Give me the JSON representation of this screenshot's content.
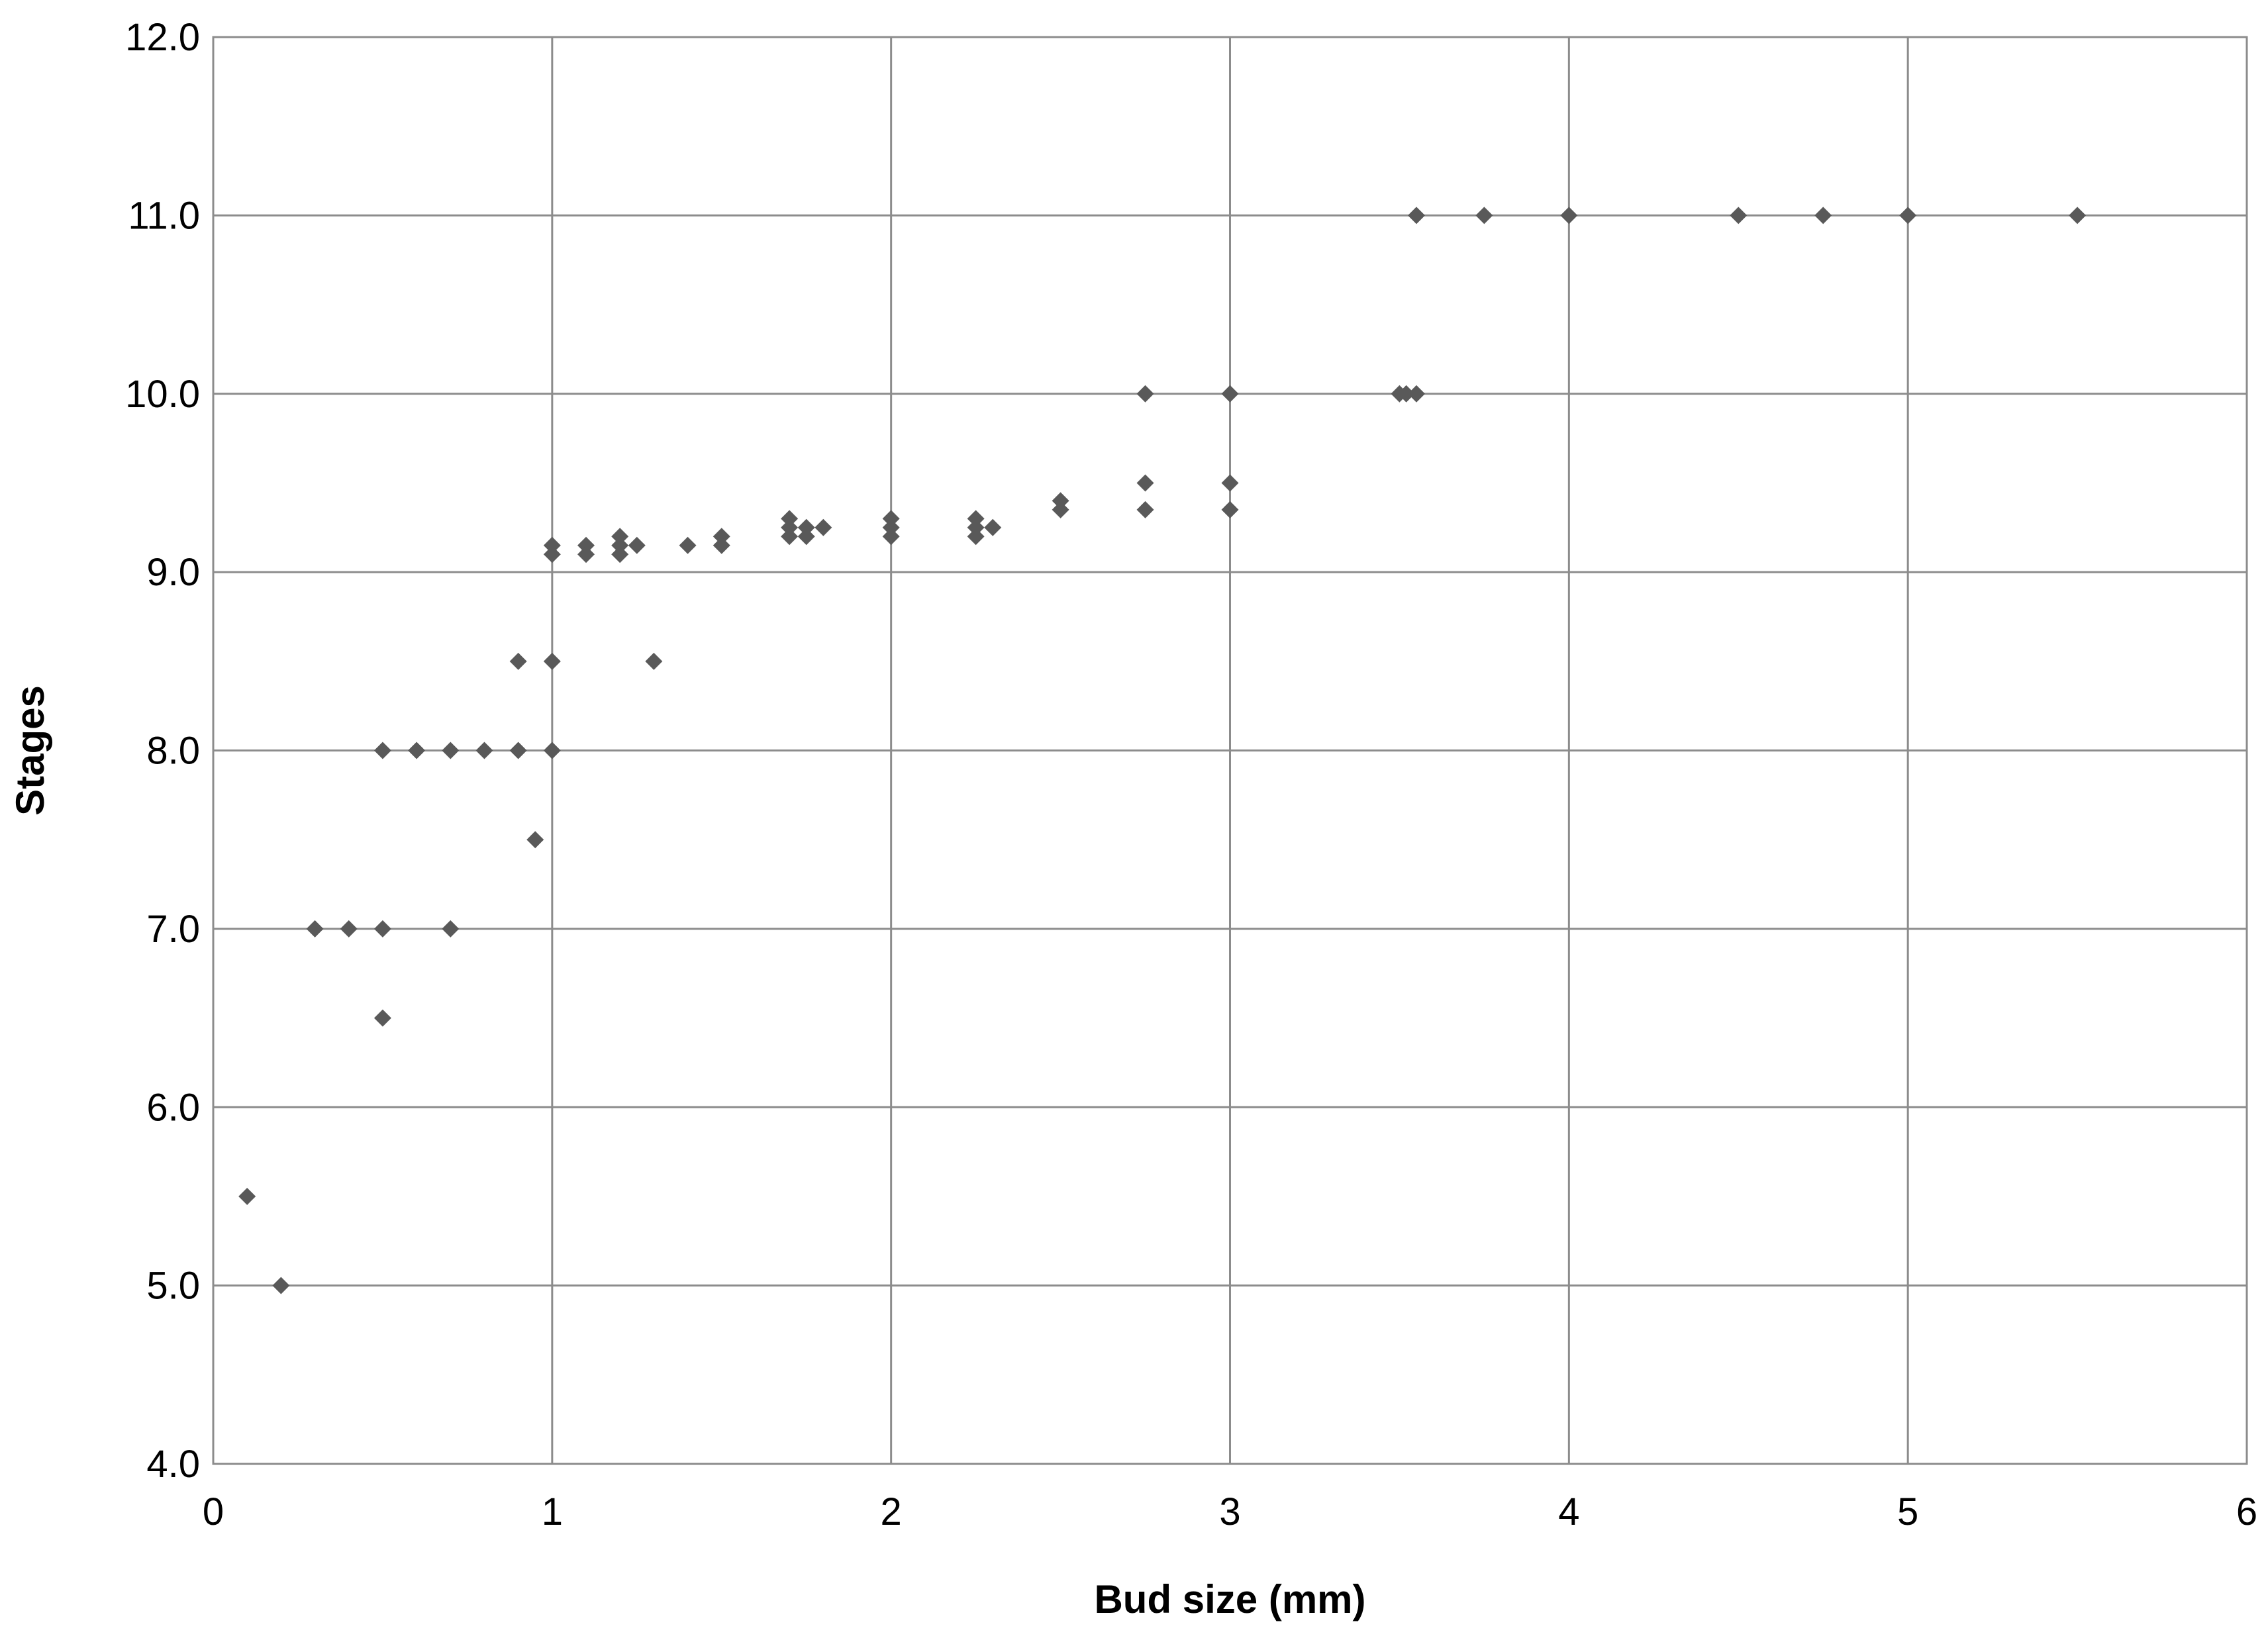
{
  "chart_data": {
    "type": "scatter",
    "title": "",
    "xlabel": "Bud size (mm)",
    "ylabel": "Stages",
    "xlim": [
      0,
      6
    ],
    "ylim": [
      4,
      12
    ],
    "x_ticks": [
      0,
      1,
      2,
      3,
      4,
      5,
      6
    ],
    "x_tick_labels": [
      "0",
      "1",
      "2",
      "3",
      "4",
      "5",
      "6"
    ],
    "y_ticks": [
      4,
      5,
      6,
      7,
      8,
      9,
      10,
      11,
      12
    ],
    "y_tick_labels": [
      "4.0",
      "5.0",
      "6.0",
      "7.0",
      "8.0",
      "9.0",
      "10.0",
      "11.0",
      "12.0"
    ],
    "grid": true,
    "legend": "none",
    "marker": "diamond",
    "marker_color": "#595959",
    "series": [
      {
        "points": [
          [
            0.1,
            5.5
          ],
          [
            0.2,
            5.0
          ],
          [
            0.3,
            7.0
          ],
          [
            0.4,
            7.0
          ],
          [
            0.5,
            7.0
          ],
          [
            0.5,
            6.5
          ],
          [
            0.7,
            7.0
          ],
          [
            0.5,
            8.0
          ],
          [
            0.6,
            8.0
          ],
          [
            0.7,
            8.0
          ],
          [
            0.8,
            8.0
          ],
          [
            0.9,
            8.0
          ],
          [
            1.0,
            8.0
          ],
          [
            0.95,
            7.5
          ],
          [
            0.9,
            8.5
          ],
          [
            1.0,
            8.5
          ],
          [
            1.3,
            8.5
          ],
          [
            1.0,
            9.15
          ],
          [
            1.0,
            9.1
          ],
          [
            1.1,
            9.15
          ],
          [
            1.1,
            9.1
          ],
          [
            1.2,
            9.2
          ],
          [
            1.2,
            9.15
          ],
          [
            1.2,
            9.1
          ],
          [
            1.25,
            9.15
          ],
          [
            1.4,
            9.15
          ],
          [
            1.5,
            9.2
          ],
          [
            1.5,
            9.15
          ],
          [
            1.7,
            9.3
          ],
          [
            1.7,
            9.25
          ],
          [
            1.7,
            9.2
          ],
          [
            1.75,
            9.25
          ],
          [
            1.75,
            9.2
          ],
          [
            1.8,
            9.25
          ],
          [
            2.0,
            9.3
          ],
          [
            2.0,
            9.25
          ],
          [
            2.0,
            9.2
          ],
          [
            2.25,
            9.3
          ],
          [
            2.25,
            9.25
          ],
          [
            2.25,
            9.2
          ],
          [
            2.3,
            9.25
          ],
          [
            2.5,
            9.4
          ],
          [
            2.5,
            9.35
          ],
          [
            2.75,
            10.0
          ],
          [
            2.75,
            9.5
          ],
          [
            2.75,
            9.35
          ],
          [
            3.0,
            10.0
          ],
          [
            3.0,
            9.5
          ],
          [
            3.0,
            9.35
          ],
          [
            3.5,
            10.0
          ],
          [
            3.52,
            10.0
          ],
          [
            3.55,
            10.0
          ],
          [
            3.55,
            11.0
          ],
          [
            3.75,
            11.0
          ],
          [
            4.0,
            11.0
          ],
          [
            4.5,
            11.0
          ],
          [
            4.75,
            11.0
          ],
          [
            5.0,
            11.0
          ],
          [
            5.5,
            11.0
          ]
        ]
      }
    ]
  }
}
